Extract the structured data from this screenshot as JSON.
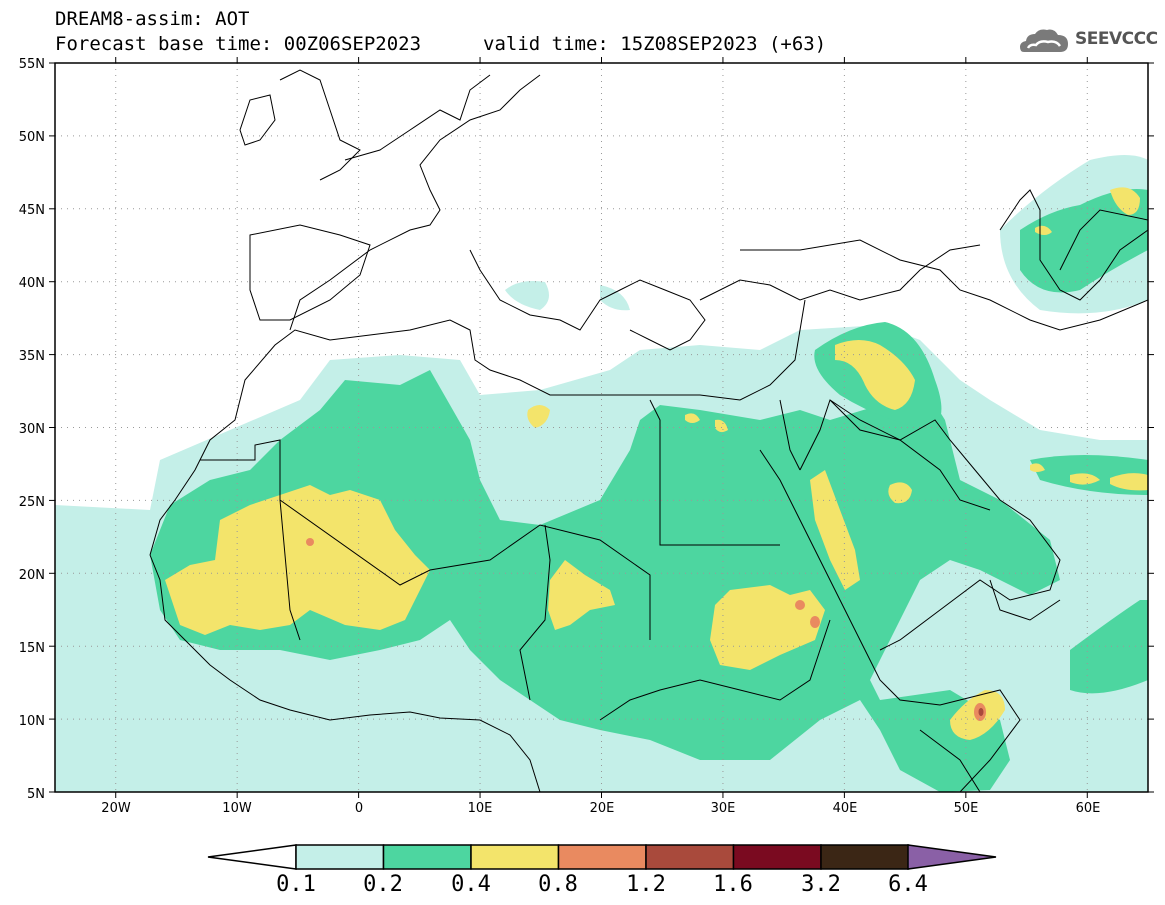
{
  "header": {
    "title": "DREAM8-assim: AOT",
    "base_time": "Forecast base time: 00Z06SEP2023",
    "valid_time": "valid time: 15Z08SEP2023 (+63)"
  },
  "logo": {
    "text": "SEEVCCC",
    "icon": "cloud-icon"
  },
  "map": {
    "lon_range": [
      -25,
      65
    ],
    "lat_range": [
      5,
      55
    ],
    "lat_labels": [
      "55N",
      "50N",
      "45N",
      "40N",
      "35N",
      "30N",
      "25N",
      "20N",
      "15N",
      "10N",
      "5N"
    ],
    "lon_labels": [
      "20W",
      "10W",
      "0",
      "10E",
      "20E",
      "30E",
      "40E",
      "50E",
      "60E"
    ],
    "grid": "dotted"
  },
  "colorbar": {
    "levels": [
      "0.1",
      "0.2",
      "0.4",
      "0.8",
      "1.2",
      "1.6",
      "3.2",
      "6.4"
    ],
    "colors": [
      "#c4efe8",
      "#4dd6a0",
      "#f3e46b",
      "#e98a60",
      "#a94a3c",
      "#7a0a20",
      "#3b2615",
      "#8a60a6"
    ]
  }
}
